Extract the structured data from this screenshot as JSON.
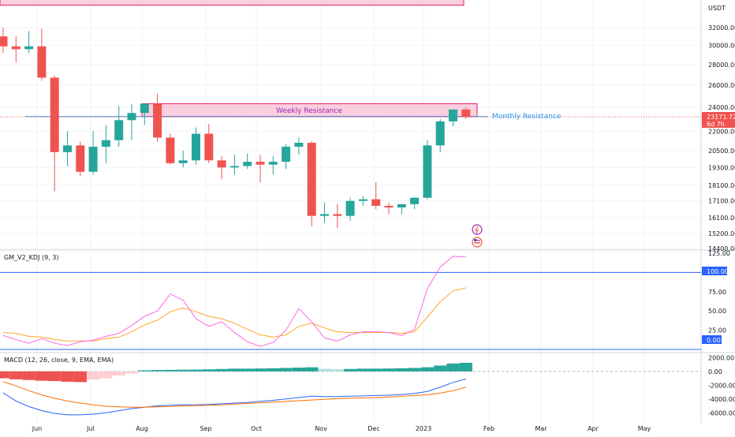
{
  "colors": {
    "up": "#26a69a",
    "down": "#ef5350",
    "resistance_fill": "#f8bbd0",
    "resistance_stroke": "#e91e63",
    "resistance_text": "#9c27b0",
    "monthly_line": "#2196f3",
    "k_line": "#ff66e0",
    "d_line": "#ffa726",
    "macd_line": "#2962ff",
    "signal_line": "#ff6d00",
    "hist_up_strong": "#26a69a",
    "hist_up_weak": "#b2dfdb",
    "hist_down_strong": "#ef5350",
    "hist_down_weak": "#ffcdd2",
    "price_badge": "#ef5350",
    "level_line": "#2962ff",
    "grid": "#f0f3fa",
    "axis_text": "#131722"
  },
  "price_axis": {
    "currency": "USDT",
    "ticks": [
      "32000.00",
      "30000.00",
      "28000.00",
      "26000.00",
      "24000.00",
      "22000.00",
      "20500.00",
      "19300.00",
      "18100.00",
      "17100.00",
      "16100.00",
      "15200.00",
      "14400.00"
    ],
    "current_price": "23171.72",
    "countdown": "6d 7h"
  },
  "time_axis": {
    "labels": [
      "Jun",
      "Jul",
      "Aug",
      "Sep",
      "Oct",
      "Nov",
      "Dec",
      "2023",
      "Feb",
      "Mar",
      "Apr",
      "May"
    ]
  },
  "annotations": {
    "weekly_resistance": "Weekly Resistance",
    "monthly_resistance": "Monthly Resistance"
  },
  "kdj": {
    "title": "GM_V2_KDJ (9, 3)",
    "ticks": [
      "125.00",
      "75.00",
      "50.00",
      "25.00"
    ],
    "upper_level": "100.00",
    "lower_level": "0.00"
  },
  "macd": {
    "title": "MACD (12, 26, close, 9, EMA, EMA)",
    "ticks": [
      "2000.00",
      "0.00",
      "-2000.00",
      "-4000.00",
      "-6000.00"
    ]
  },
  "chart_data": {
    "type": "candlestick",
    "symbol_quote": "USDT",
    "price_scale": "log",
    "x_labels": [
      "Jun",
      "Jul",
      "Aug",
      "Sep",
      "Oct",
      "Nov",
      "Dec",
      "2023",
      "Feb",
      "Mar",
      "Apr",
      "May"
    ],
    "candles": [
      {
        "o": 31000,
        "h": 32000,
        "l": 29200,
        "c": 29900
      },
      {
        "o": 29900,
        "h": 31000,
        "l": 28200,
        "c": 29600
      },
      {
        "o": 29600,
        "h": 31600,
        "l": 29200,
        "c": 29900
      },
      {
        "o": 29900,
        "h": 31900,
        "l": 26400,
        "c": 26700
      },
      {
        "o": 26700,
        "h": 26900,
        "l": 17700,
        "c": 20400
      },
      {
        "o": 20400,
        "h": 22000,
        "l": 19400,
        "c": 20900
      },
      {
        "o": 20900,
        "h": 21200,
        "l": 18700,
        "c": 19000
      },
      {
        "o": 19000,
        "h": 22000,
        "l": 18800,
        "c": 20800
      },
      {
        "o": 20800,
        "h": 22500,
        "l": 19600,
        "c": 21300
      },
      {
        "o": 21300,
        "h": 24100,
        "l": 20800,
        "c": 22900
      },
      {
        "o": 22900,
        "h": 24300,
        "l": 21300,
        "c": 23500
      },
      {
        "o": 23500,
        "h": 24300,
        "l": 22500,
        "c": 24300
      },
      {
        "o": 24300,
        "h": 25200,
        "l": 21200,
        "c": 21500
      },
      {
        "o": 21500,
        "h": 21800,
        "l": 19500,
        "c": 19600
      },
      {
        "o": 19600,
        "h": 20500,
        "l": 19300,
        "c": 19800
      },
      {
        "o": 19800,
        "h": 22300,
        "l": 19500,
        "c": 21800
      },
      {
        "o": 21800,
        "h": 22600,
        "l": 19600,
        "c": 19800
      },
      {
        "o": 19800,
        "h": 20100,
        "l": 18500,
        "c": 19300
      },
      {
        "o": 19300,
        "h": 20200,
        "l": 18800,
        "c": 19400
      },
      {
        "o": 19400,
        "h": 20300,
        "l": 19200,
        "c": 19700
      },
      {
        "o": 19700,
        "h": 20200,
        "l": 18300,
        "c": 19500
      },
      {
        "o": 19500,
        "h": 20100,
        "l": 18800,
        "c": 19700
      },
      {
        "o": 19700,
        "h": 21000,
        "l": 19200,
        "c": 20800
      },
      {
        "o": 20800,
        "h": 21500,
        "l": 20200,
        "c": 21100
      },
      {
        "o": 21100,
        "h": 21200,
        "l": 15600,
        "c": 16200
      },
      {
        "o": 16200,
        "h": 17000,
        "l": 15800,
        "c": 16300
      },
      {
        "o": 16300,
        "h": 16900,
        "l": 15500,
        "c": 16200
      },
      {
        "o": 16200,
        "h": 17300,
        "l": 15900,
        "c": 17100
      },
      {
        "o": 17100,
        "h": 17400,
        "l": 16800,
        "c": 17200
      },
      {
        "o": 17200,
        "h": 18300,
        "l": 16600,
        "c": 16800
      },
      {
        "o": 16800,
        "h": 17000,
        "l": 16300,
        "c": 16700
      },
      {
        "o": 16700,
        "h": 16900,
        "l": 16300,
        "c": 16900
      },
      {
        "o": 16900,
        "h": 17300,
        "l": 16600,
        "c": 17300
      },
      {
        "o": 17300,
        "h": 21300,
        "l": 17200,
        "c": 20900
      },
      {
        "o": 20900,
        "h": 23000,
        "l": 20400,
        "c": 22800
      },
      {
        "o": 22800,
        "h": 23800,
        "l": 22400,
        "c": 23800
      },
      {
        "o": 23800,
        "h": 24000,
        "l": 23000,
        "c": 23171.72
      }
    ],
    "weekly_resistance": {
      "top": 24300,
      "bottom": 23200,
      "label": "Weekly Resistance"
    },
    "top_resistance_zone": {
      "bottom": 34700
    },
    "monthly_resistance": {
      "value": 23200,
      "label": "Monthly Resistance"
    },
    "kdj": {
      "levels": [
        100,
        0
      ],
      "ylim": [
        0,
        125
      ],
      "k": [
        18,
        13,
        8,
        14,
        8,
        5,
        10,
        12,
        17,
        21,
        31,
        43,
        50,
        72,
        64,
        40,
        30,
        36,
        22,
        10,
        4,
        9,
        25,
        53,
        36,
        15,
        11,
        19,
        23,
        23,
        22,
        18,
        26,
        79,
        107,
        121,
        120
      ],
      "d": [
        22,
        21,
        17,
        16,
        13,
        11,
        11,
        11,
        14,
        16,
        23,
        32,
        38,
        49,
        54,
        49,
        43,
        40,
        34,
        26,
        19,
        16,
        19,
        30,
        34,
        28,
        23,
        22,
        22,
        22,
        22,
        21,
        23,
        42,
        62,
        76,
        80
      ]
    },
    "macd": {
      "ylim": [
        -7000,
        2500
      ],
      "macd": [
        -3100,
        -4300,
        -5100,
        -5700,
        -6100,
        -6300,
        -6300,
        -6200,
        -6000,
        -5700,
        -5400,
        -5200,
        -5000,
        -4900,
        -4850,
        -4850,
        -4800,
        -4700,
        -4600,
        -4500,
        -4350,
        -4200,
        -4000,
        -3800,
        -3600,
        -3650,
        -3650,
        -3600,
        -3550,
        -3500,
        -3450,
        -3350,
        -3200,
        -2900,
        -2300,
        -1600,
        -1100
      ],
      "signal": [
        -1500,
        -2100,
        -2800,
        -3400,
        -3900,
        -4300,
        -4600,
        -4850,
        -5050,
        -5150,
        -5200,
        -5200,
        -5150,
        -5100,
        -5000,
        -4950,
        -4900,
        -4850,
        -4750,
        -4650,
        -4550,
        -4450,
        -4350,
        -4250,
        -4150,
        -4050,
        -3950,
        -3900,
        -3850,
        -3800,
        -3700,
        -3600,
        -3500,
        -3400,
        -3150,
        -2800,
        -2300
      ],
      "histogram": [
        -1000,
        -1150,
        -1250,
        -1350,
        -1400,
        -1500,
        -1550,
        -1200,
        -1000,
        -600,
        -300,
        150,
        200,
        220,
        250,
        260,
        300,
        350,
        400,
        400,
        420,
        450,
        500,
        550,
        600,
        380,
        300,
        350,
        400,
        400,
        420,
        450,
        500,
        600,
        850,
        1150,
        1250
      ]
    }
  }
}
